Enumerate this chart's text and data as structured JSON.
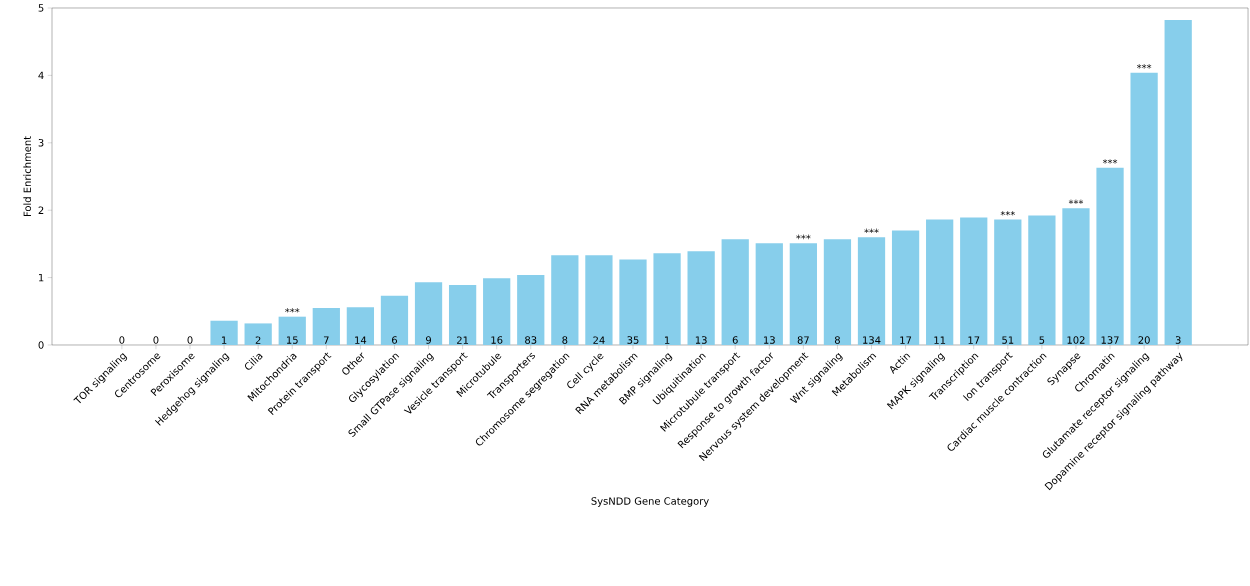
{
  "chart_data": {
    "type": "bar",
    "xlabel": "SysNDD Gene Category",
    "ylabel": "Fold Enrichment",
    "categories": [
      "TOR signaling",
      "Centrosome",
      "Peroxisome",
      "Hedgehog signaling",
      "Cilia",
      "Mitochondria",
      "Protein transport",
      "Other",
      "Glycosylation",
      "Small GTPase signaling",
      "Vesicle transport",
      "Microtubule",
      "Transporters",
      "Chromosome segregation",
      "Cell cycle",
      "RNA metabolism",
      "BMP signaling",
      "Ubiquitination",
      "Microtubule transport",
      "Response to growth factor",
      "Nervous system development",
      "Wnt signaling",
      "Metabolism",
      "Actin",
      "MAPK signaling",
      "Transcription",
      "Ion transport",
      "Cardiac muscle contraction",
      "Synapse",
      "Chromatin",
      "Glutamate receptor signaling",
      "Dopamine receptor signaling pathway"
    ],
    "values": [
      0,
      0,
      0,
      0.36,
      0.32,
      0.42,
      0.55,
      0.56,
      0.73,
      0.93,
      0.89,
      0.99,
      1.04,
      1.33,
      1.33,
      1.27,
      1.36,
      1.39,
      1.57,
      1.51,
      1.51,
      1.57,
      1.6,
      1.7,
      1.86,
      1.89,
      1.86,
      1.92,
      2.03,
      2.63,
      4.04,
      4.82
    ],
    "color": "#87ceeb",
    "ylim": [
      0,
      5
    ],
    "yticks": [
      0,
      1,
      2,
      3,
      4,
      5
    ],
    "grid": false,
    "annotations": [
      {
        "text": "0",
        "x": "TOR signaling",
        "y": 0
      },
      {
        "text": "0",
        "x": "Centrosome",
        "y": 0
      },
      {
        "text": "0",
        "x": "Peroxisome",
        "y": 0
      },
      {
        "text": "1",
        "x": "Hedgehog signaling",
        "y": 0
      },
      {
        "text": "2",
        "x": "Cilia",
        "y": 0
      },
      {
        "text": "15",
        "x": "Mitochondria",
        "y": 0
      },
      {
        "text": "7",
        "x": "Protein transport",
        "y": 0
      },
      {
        "text": "14",
        "x": "Other",
        "y": 0
      },
      {
        "text": "6",
        "x": "Glycosylation",
        "y": 0
      },
      {
        "text": "9",
        "x": "Small GTPase signaling",
        "y": 0
      },
      {
        "text": "21",
        "x": "Vesicle transport",
        "y": 0
      },
      {
        "text": "16",
        "x": "Microtubule",
        "y": 0
      },
      {
        "text": "83",
        "x": "Transporters",
        "y": 0
      },
      {
        "text": "8",
        "x": "Chromosome segregation",
        "y": 0
      },
      {
        "text": "24",
        "x": "Cell cycle",
        "y": 0
      },
      {
        "text": "35",
        "x": "RNA metabolism",
        "y": 0
      },
      {
        "text": "1",
        "x": "BMP signaling",
        "y": 0
      },
      {
        "text": "13",
        "x": "Ubiquitination",
        "y": 0
      },
      {
        "text": "6",
        "x": "Microtubule transport",
        "y": 0
      },
      {
        "text": "13",
        "x": "Response to growth factor",
        "y": 0
      },
      {
        "text": "87",
        "x": "Nervous system development",
        "y": 0
      },
      {
        "text": "8",
        "x": "Wnt signaling",
        "y": 0
      },
      {
        "text": "134",
        "x": "Metabolism",
        "y": 0
      },
      {
        "text": "17",
        "x": "Actin",
        "y": 0
      },
      {
        "text": "11",
        "x": "MAPK signaling",
        "y": 0
      },
      {
        "text": "17",
        "x": "Transcription",
        "y": 0
      },
      {
        "text": "51",
        "x": "Ion transport",
        "y": 0
      },
      {
        "text": "5",
        "x": "Cardiac muscle contraction",
        "y": 0
      },
      {
        "text": "102",
        "x": "Synapse",
        "y": 0
      },
      {
        "text": "137",
        "x": "Chromatin",
        "y": 0
      },
      {
        "text": "20",
        "x": "Glutamate receptor signaling",
        "y": 0
      },
      {
        "text": "3",
        "x": "Dopamine receptor signaling pathway",
        "y": 0
      },
      {
        "text": "***",
        "x": "Mitochondria",
        "y": 0.42
      },
      {
        "text": "***",
        "x": "Nervous system development",
        "y": 1.51
      },
      {
        "text": "***",
        "x": "Metabolism",
        "y": 1.6
      },
      {
        "text": "***",
        "x": "Ion transport",
        "y": 1.86
      },
      {
        "text": "***",
        "x": "Synapse",
        "y": 2.03
      },
      {
        "text": "***",
        "x": "Chromatin",
        "y": 2.63
      },
      {
        "text": "***",
        "x": "Glutamate receptor signaling",
        "y": 4.04
      }
    ]
  }
}
